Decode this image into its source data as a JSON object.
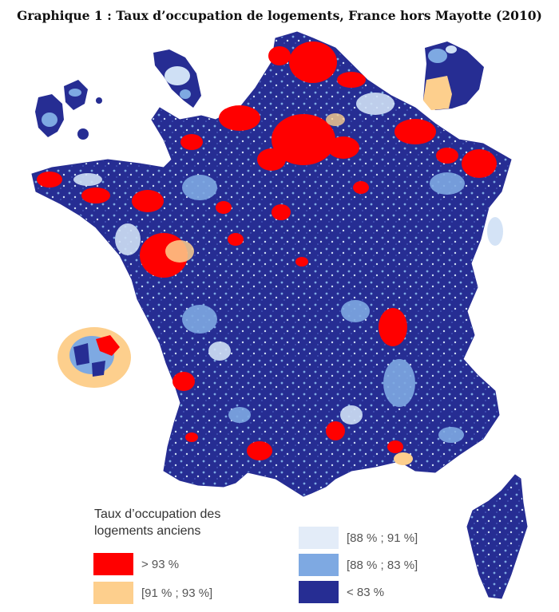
{
  "title": "Graphique 1 : Taux d’occupation de logements, France hors Mayotte (2010)",
  "legend": {
    "title_line1": "Taux d’occupation des",
    "title_line2": "logements anciens",
    "items": [
      {
        "label": "> 93 %",
        "color": "#ff0000"
      },
      {
        "label": "[91 % ; 93 %]",
        "color": "#fdcf8d"
      },
      {
        "label": "[88 % ; 91 %]",
        "color": "#e3ecf8"
      },
      {
        "label": "[88 % ; 83 %]",
        "color": "#7ea9e2"
      },
      {
        "label": "< 83 %",
        "color": "#262d93"
      }
    ]
  },
  "colors": {
    "very_high": "#ff0000",
    "high": "#fdcf8d",
    "mid": "#cfe0f5",
    "low": "#7ea9e2",
    "very_low": "#262d93"
  }
}
